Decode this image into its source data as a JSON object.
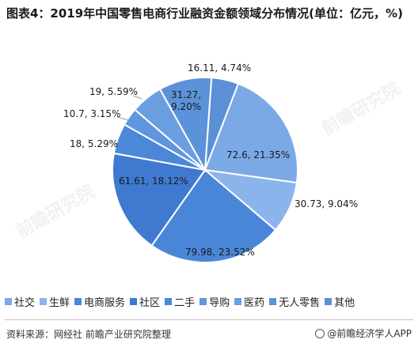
{
  "title": "图表4：2019年中国零售电商行业融资金额领域分布情况(单位：亿元，%)",
  "source": "资料来源：网经社 前瞻产业研究院整理",
  "brand": "@前瞻经济学人APP",
  "watermark": "前瞻研究院",
  "chart_data": {
    "type": "pie",
    "title": "图表4：2019年中国零售电商行业融资金额领域分布情况(单位：亿元，%)",
    "start_angle_deg": 4,
    "direction": "clockwise",
    "labels_format": "value, percent%",
    "slices": [
      {
        "name": "其他",
        "value": 16.11,
        "percent": 4.74,
        "label": "16.11, 4.74%",
        "color": "#5B8FD6"
      },
      {
        "name": "社交",
        "value": 72.6,
        "percent": 21.35,
        "label": "72.6, 21.35%",
        "color": "#7AA9E6"
      },
      {
        "name": "生鲜",
        "value": 30.73,
        "percent": 9.04,
        "label": "30.73, 9.04%",
        "color": "#8CB4EC"
      },
      {
        "name": "电商服务",
        "value": 79.98,
        "percent": 23.52,
        "label": "79.98, 23.52%",
        "color": "#4A86D8"
      },
      {
        "name": "社区",
        "value": 61.61,
        "percent": 18.12,
        "label": "61.61, 18.12%",
        "color": "#3F7AD0"
      },
      {
        "name": "二手",
        "value": 18,
        "percent": 5.29,
        "label": "18, 5.29%",
        "color": "#4D88D8"
      },
      {
        "name": "导购",
        "value": 10.7,
        "percent": 3.15,
        "label": "10.7, 3.15%",
        "color": "#5F96DE"
      },
      {
        "name": "医药",
        "value": 19,
        "percent": 5.59,
        "label": "19, 5.59%",
        "color": "#6A9EE0"
      },
      {
        "name": "无人零售",
        "value": 31.27,
        "percent": 9.2,
        "label": "31.27,\n9.20%",
        "color": "#5C92DA"
      }
    ],
    "legend": {
      "position": "bottom",
      "items": [
        {
          "name": "社交",
          "color": "#7AA9E6"
        },
        {
          "name": "生鲜",
          "color": "#8CB4EC"
        },
        {
          "name": "电商服务",
          "color": "#4A86D8"
        },
        {
          "name": "社区",
          "color": "#3F7AD0"
        },
        {
          "name": "二手",
          "color": "#4D88D8"
        },
        {
          "name": "导购",
          "color": "#5F96DE"
        },
        {
          "name": "医药",
          "color": "#6A9EE0"
        },
        {
          "name": "无人零售",
          "color": "#5C92DA"
        },
        {
          "name": "其他",
          "color": "#5B8FD6"
        }
      ]
    }
  }
}
